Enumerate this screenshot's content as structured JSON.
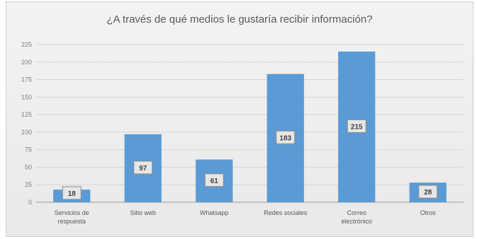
{
  "chart_data": {
    "type": "bar",
    "title": "¿A través de qué medios le gustaría recibir información?",
    "xlabel": "",
    "ylabel": "",
    "categories": [
      "Servicios de respuesta",
      "Sitio web",
      "Whatsapp",
      "Redes sociales",
      "Correo electrónico",
      "Otros"
    ],
    "values": [
      18,
      97,
      61,
      183,
      215,
      28
    ],
    "ylim": [
      0,
      225
    ],
    "yticks": [
      0,
      25,
      50,
      75,
      100,
      125,
      150,
      175,
      200,
      225
    ],
    "grid": true,
    "bar_color": "#5b9bd5"
  }
}
